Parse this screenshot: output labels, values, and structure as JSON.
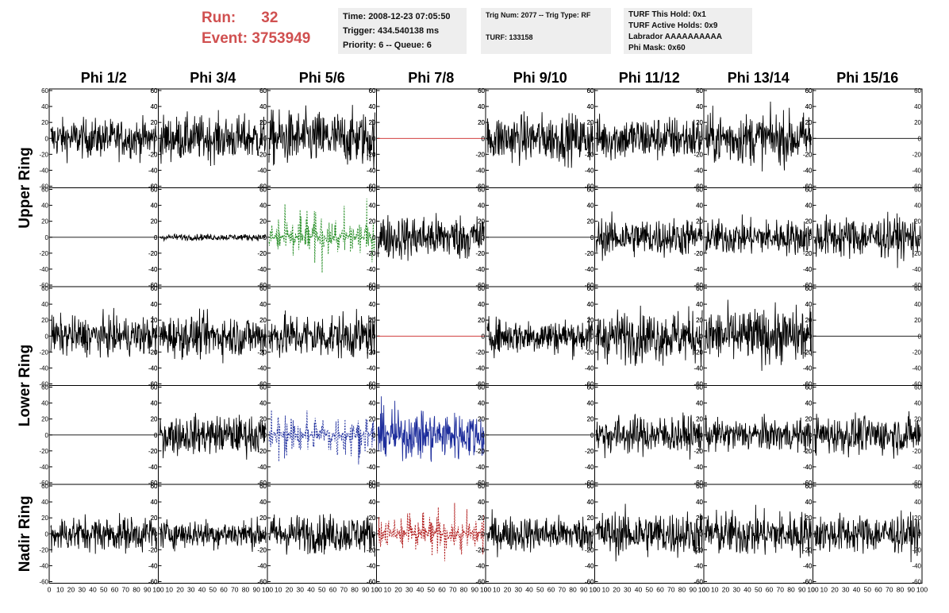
{
  "header": {
    "run_label": "Run:",
    "run_value": "32",
    "event_label": "Event:",
    "event_value": "3753949"
  },
  "info_time": {
    "time": "Time: 2008-12-23 07:05:50",
    "trigger": "Trigger: 434.540138 ms",
    "priority": "Priority: 6 -- Queue: 6"
  },
  "info_trig": {
    "trig": "Trig Num: 2077 -- Trig Type: RF",
    "turf": "TURF: 133158"
  },
  "info_turf": {
    "hold": "TURF This Hold: 0x1",
    "active": "TURF Active Holds: 0x9",
    "labrador": "Labrador AAAAAAAAAA",
    "phimask": "Phi Mask: 0x60"
  },
  "chart_data": {
    "type": "line",
    "column_titles": [
      "Phi 1/2",
      "Phi 3/4",
      "Phi 5/6",
      "Phi 7/8",
      "Phi 9/10",
      "Phi 11/12",
      "Phi 13/14",
      "Phi 15/16"
    ],
    "ring_labels": [
      "Upper Ring",
      "Lower Ring",
      "Nadir Ring"
    ],
    "ylim": [
      -60,
      60
    ],
    "yticks": [
      -60,
      -40,
      -20,
      0,
      20,
      40,
      60
    ],
    "xlim": [
      0,
      100
    ],
    "xtick_labels": [
      "0",
      "10",
      "20",
      "30",
      "40",
      "50",
      "60",
      "70",
      "80",
      "90",
      "100"
    ],
    "colors": {
      "black": "#000000",
      "red": "#cc2222",
      "green": "#1f8a1f",
      "blue": "#1e2e9c",
      "darkred": "#b01818"
    },
    "panels": [
      [
        "noise",
        12
      ],
      [
        "noise",
        14
      ],
      [
        "noise",
        17
      ],
      [
        "flat",
        0,
        "red"
      ],
      [
        "noise",
        15
      ],
      [
        "noise",
        14
      ],
      [
        "noise",
        16
      ],
      [
        "flat",
        0
      ],
      [
        "flat",
        0
      ],
      [
        "noise",
        2
      ],
      [
        "burst",
        18,
        "green"
      ],
      [
        "noise",
        14
      ],
      [
        "flat",
        0
      ],
      [
        "noise",
        12
      ],
      [
        "noise",
        11
      ],
      [
        "noise",
        13
      ],
      [
        "noise",
        12
      ],
      [
        "noise",
        13
      ],
      [
        "noise",
        14
      ],
      [
        "flat",
        0,
        "red"
      ],
      [
        "noise",
        11
      ],
      [
        "noise",
        16
      ],
      [
        "noise",
        17
      ],
      [
        "flat",
        0
      ],
      [
        "flat",
        0
      ],
      [
        "noise",
        12
      ],
      [
        "burst",
        16,
        "blue"
      ],
      [
        "dense",
        18,
        "blue"
      ],
      [
        "flat",
        0
      ],
      [
        "noise",
        12
      ],
      [
        "noise",
        10
      ],
      [
        "noise",
        12
      ],
      [
        "noise",
        11
      ],
      [
        "noise",
        9
      ],
      [
        "noise",
        12
      ],
      [
        "burst",
        18,
        "darkred"
      ],
      [
        "noise",
        11
      ],
      [
        "noise",
        14
      ],
      [
        "noise",
        14
      ],
      [
        "noise",
        12
      ]
    ]
  }
}
